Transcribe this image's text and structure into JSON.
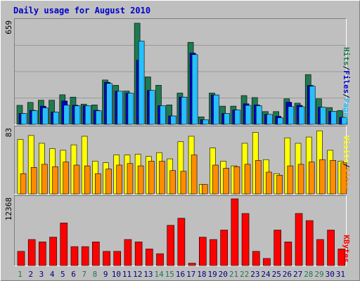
{
  "colors": {
    "background": "#bfbfbf",
    "frame": "#ffffff",
    "title": "#0000cc",
    "hits": "#1e7a50",
    "files": "#26bfff",
    "pages": "#0000cc",
    "visits": "#ffff00",
    "sites": "#ff8c00",
    "kbytes": "#ff0000",
    "weekend_label": "#1e7a50",
    "weekday_label": "#000080"
  },
  "chart_data": [
    {
      "type": "bar",
      "title": "Daily usage for August 2010",
      "panel": "top",
      "ymax_label": "659",
      "ylim": [
        0,
        659
      ],
      "legend": [
        "Pages",
        "Files",
        "Hits"
      ],
      "legend_separator": "/",
      "categories": [
        "1",
        "2",
        "3",
        "4",
        "5",
        "6",
        "7",
        "8",
        "9",
        "10",
        "11",
        "12",
        "13",
        "14",
        "15",
        "16",
        "17",
        "18",
        "19",
        "20",
        "21",
        "22",
        "23",
        "24",
        "25",
        "26",
        "27",
        "28",
        "29",
        "30",
        "31"
      ],
      "series": [
        {
          "name": "Hits",
          "values": [
            122,
            141,
            155,
            155,
            190,
            175,
            130,
            125,
            285,
            251,
            214,
            650,
            305,
            251,
            125,
            201,
            527,
            48,
            201,
            117,
            117,
            185,
            172,
            82,
            82,
            164,
            136,
            320,
            164,
            108,
            89
          ]
        },
        {
          "name": "Files",
          "values": [
            70,
            88,
            106,
            79,
            123,
            119,
            120,
            87,
            263,
            213,
            200,
            535,
            218,
            120,
            54,
            175,
            448,
            30,
            189,
            70,
            92,
            122,
            120,
            64,
            42,
            114,
            113,
            245,
            110,
            84,
            45
          ]
        },
        {
          "name": "Pages",
          "values": [
            70,
            90,
            117,
            79,
            150,
            123,
            120,
            90,
            270,
            213,
            200,
            412,
            218,
            120,
            54,
            175,
            458,
            30,
            189,
            70,
            92,
            132,
            125,
            64,
            52,
            142,
            122,
            250,
            110,
            84,
            45
          ]
        }
      ]
    },
    {
      "type": "bar",
      "panel": "middle",
      "ymax_label": "83",
      "ylim": [
        0,
        83
      ],
      "legend": [
        "Sites",
        "Visits"
      ],
      "legend_separator": "/",
      "categories": [
        "1",
        "2",
        "3",
        "4",
        "5",
        "6",
        "7",
        "8",
        "9",
        "10",
        "11",
        "12",
        "13",
        "14",
        "15",
        "16",
        "17",
        "18",
        "19",
        "20",
        "21",
        "22",
        "23",
        "24",
        "25",
        "26",
        "27",
        "28",
        "29",
        "30",
        "31"
      ],
      "series": [
        {
          "name": "Visits",
          "values": [
            70,
            75,
            65,
            58,
            56,
            63,
            74,
            42,
            40,
            50,
            50,
            51,
            48,
            53,
            45,
            67,
            74,
            12,
            59,
            42,
            36,
            65,
            79,
            44,
            26,
            72,
            65,
            73,
            81,
            56,
            42
          ]
        },
        {
          "name": "Sites",
          "values": [
            26,
            34,
            38,
            35,
            41,
            37,
            36,
            26,
            32,
            37,
            39,
            36,
            42,
            42,
            30,
            29,
            50,
            12,
            37,
            33,
            35,
            38,
            43,
            28,
            24,
            36,
            38,
            41,
            44,
            43,
            40
          ]
        }
      ]
    },
    {
      "type": "bar",
      "panel": "bottom",
      "ymax_label": "12368",
      "ylim": [
        0,
        12368
      ],
      "legend": [
        "KBytes"
      ],
      "categories": [
        "1",
        "2",
        "3",
        "4",
        "5",
        "6",
        "7",
        "8",
        "9",
        "10",
        "11",
        "12",
        "13",
        "14",
        "15",
        "16",
        "17",
        "18",
        "19",
        "20",
        "21",
        "22",
        "23",
        "24",
        "25",
        "26",
        "27",
        "28",
        "29",
        "30",
        "31"
      ],
      "weekend_days": [
        "1",
        "7",
        "8",
        "14",
        "15",
        "21",
        "22",
        "28",
        "29"
      ],
      "series": [
        {
          "name": "KBytes",
          "values": [
            2631,
            4823,
            4385,
            5262,
            7893,
            3508,
            3508,
            4385,
            2631,
            2631,
            4823,
            4385,
            3069,
            2192,
            7455,
            8770,
            438,
            5262,
            4823,
            6577,
            12368,
            9647,
            2631,
            1315,
            6577,
            4385,
            9647,
            8331,
            4823,
            6577,
            3069
          ]
        }
      ]
    }
  ]
}
